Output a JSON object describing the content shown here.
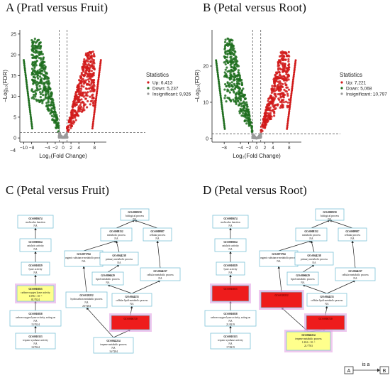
{
  "panels": {
    "A": {
      "title": "A (Pratl versus Fruit)"
    },
    "B": {
      "title": "B (Petal versus Root)"
    },
    "C": {
      "title": "C (Petal versus Fruit)"
    },
    "D": {
      "title": "D (Petal versus Root)"
    }
  },
  "chart_data": [
    {
      "type": "scatter",
      "panel": "A",
      "xlabel": "Log₂(Fold Change)",
      "ylabel": "−Log₁₀(FDR)",
      "xticks": [
        "−10",
        "−8",
        "−4",
        "−2",
        "0",
        "2",
        "4",
        "8"
      ],
      "yticks": [
        "0",
        "5",
        "10",
        "15",
        "20",
        "25"
      ],
      "extra_tick": "−4",
      "ylim": [
        -1,
        26
      ],
      "thresholds": {
        "log2fc": [
          -1,
          1
        ],
        "neglog10fdr": 1.3
      },
      "legend_position": "right",
      "legend": {
        "title": "Statistics",
        "items": [
          "Up: 6,413",
          "Down: 5,237",
          "Insignificant: 9,926"
        ]
      },
      "series": [
        {
          "name": "Down",
          "color": "#1f6e1f",
          "count": 5237
        },
        {
          "name": "Up",
          "color": "#d11a1a",
          "count": 6413
        },
        {
          "name": "Insignificant",
          "color": "#9a9a9a",
          "count": 9926
        }
      ]
    },
    {
      "type": "scatter",
      "panel": "B",
      "xlabel": "Log₂(Fold Change)",
      "ylabel": "−Log₁₀(FDR)",
      "xticks": [
        "−8",
        "−4",
        "−2",
        "0",
        "2",
        "4",
        "8"
      ],
      "yticks": [
        "0",
        "10",
        "20"
      ],
      "ylim": [
        -1,
        30
      ],
      "thresholds": {
        "log2fc": [
          -1,
          1
        ],
        "neglog10fdr": 1.3
      },
      "legend_position": "right",
      "legend": {
        "title": "Statistics",
        "items": [
          "Up: 7,221",
          "Down: 5,068",
          "Insignificant: 10,797"
        ]
      },
      "series": [
        {
          "name": "Down",
          "color": "#1f6e1f",
          "count": 5068
        },
        {
          "name": "Up",
          "color": "#d11a1a",
          "count": 7221
        },
        {
          "name": "Insignificant",
          "color": "#9a9a9a",
          "count": 10797
        }
      ]
    }
  ],
  "go_graph_C": [
    {
      "id": "GO:0003674",
      "name": "molecular function",
      "val": "NA",
      "fill": "white"
    },
    {
      "id": "GO:0003824",
      "name": "catalytic activity",
      "val": "NA",
      "fill": "white"
    },
    {
      "id": "GO:0016829",
      "name": "lyase activity",
      "val": "NA",
      "fill": "white"
    },
    {
      "id": "GO:0016835",
      "name": "carbon-oxygen lyase activity",
      "val": "1.096 × 10⁻⁵",
      "val2": "81/7624",
      "fill": "yellow"
    },
    {
      "id": "GO:0016838",
      "name": "carbon-oxygen lyase activity, acting on",
      "val": "NA",
      "val2": "15/7624",
      "fill": "white"
    },
    {
      "id": "GO:0010333",
      "name": "terpene synthase activity",
      "val": "NA",
      "val2": "10/7624",
      "fill": "white"
    },
    {
      "id": "GO:0008150",
      "name": "biological process",
      "val": "NA",
      "fill": "white"
    },
    {
      "id": "GO:0008152",
      "name": "metabolic process",
      "val": "NA",
      "fill": "white"
    },
    {
      "id": "GO:0009987",
      "name": "cellular process",
      "val": "NA",
      "fill": "white"
    },
    {
      "id": "GO:0071704",
      "name": "organic substance metabolic process",
      "val": "NA",
      "fill": "white"
    },
    {
      "id": "GO:0044238",
      "name": "primary metabolic process",
      "val": "NA",
      "fill": "white"
    },
    {
      "id": "GO:0006629",
      "name": "lipid metabolic process",
      "val": "NA",
      "fill": "white"
    },
    {
      "id": "GO:0044237",
      "name": "cellular metabolic process",
      "val": "NA",
      "fill": "white"
    },
    {
      "id": "GO:0120252",
      "name": "hydrocarbon metabolic process",
      "val": "NA",
      "val2": "20/7284",
      "fill": "white"
    },
    {
      "id": "GO:0044255",
      "name": "cellular lipid metabolic process",
      "val": "NA",
      "fill": "white"
    },
    {
      "id": "GO:0006720",
      "name": "",
      "val": "",
      "fill": "red"
    },
    {
      "id": "GO:0042214",
      "name": "terpene metabolic process",
      "val": "NA",
      "val2": "16/7284",
      "fill": "white"
    }
  ],
  "go_graph_D": [
    {
      "id": "GO:0003674",
      "name": "molecular function",
      "val": "NA",
      "fill": "white"
    },
    {
      "id": "GO:0003824",
      "name": "catalytic activity",
      "val": "NA",
      "fill": "white"
    },
    {
      "id": "GO:0016829",
      "name": "lyase activity",
      "val": "NA",
      "fill": "white"
    },
    {
      "id": "GO:0016835",
      "name": "",
      "val": "",
      "fill": "red"
    },
    {
      "id": "GO:0016838",
      "name": "carbon-oxygen lyase activity, acting on",
      "val": "NA",
      "val2": "21/8219",
      "fill": "white"
    },
    {
      "id": "GO:0010333",
      "name": "terpene synthase activity",
      "val": "NA",
      "val2": "17/8219",
      "fill": "white"
    },
    {
      "id": "GO:0008150",
      "name": "biological process",
      "val": "NA",
      "fill": "white"
    },
    {
      "id": "GO:0008152",
      "name": "metabolic process",
      "val": "NA",
      "fill": "white"
    },
    {
      "id": "GO:0009987",
      "name": "cellular process",
      "val": "NA",
      "fill": "white"
    },
    {
      "id": "GO:0071704",
      "name": "organic substance metabolic process",
      "val": "NA",
      "fill": "white"
    },
    {
      "id": "GO:0044238",
      "name": "primary metabolic process",
      "val": "NA",
      "fill": "white"
    },
    {
      "id": "GO:0006629",
      "name": "lipid metabolic process",
      "val": "NA",
      "fill": "white"
    },
    {
      "id": "GO:0044237",
      "name": "cellular metabolic process",
      "val": "NA",
      "fill": "white"
    },
    {
      "id": "GO:0120252",
      "name": "",
      "val": "",
      "fill": "red"
    },
    {
      "id": "GO:0044255",
      "name": "cellular lipid metabolic process",
      "val": "NA",
      "fill": "white"
    },
    {
      "id": "GO:0006720",
      "name": "",
      "val": "",
      "fill": "red"
    },
    {
      "id": "GO:0042214",
      "name": "terpene metabolic process",
      "val": "1.204 × 10⁻⁵",
      "val2": "21/7763",
      "fill": "yellow"
    }
  ],
  "key": {
    "left": "A",
    "rel": "is a",
    "right": "B"
  },
  "colors": {
    "down": "#1f6e1f",
    "up": "#d11a1a",
    "insig": "#9a9a9a",
    "node_border": "#7ec3d8",
    "node_red": "#ee1c1c",
    "node_yellow": "#ffff8c",
    "node_glow": "#e5a3e5"
  }
}
